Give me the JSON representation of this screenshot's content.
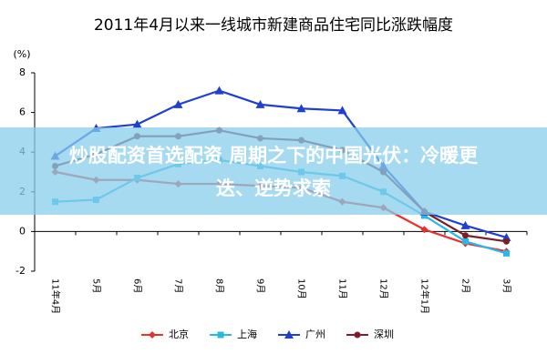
{
  "chart_data": {
    "type": "line",
    "title": "2011年4月以来一线城市新建商品住宅同比涨跌幅度",
    "y_label": "(%)",
    "categories": [
      "11年4月",
      "5月",
      "6月",
      "7月",
      "8月",
      "9月",
      "10月",
      "11月",
      "12月",
      "12年1月",
      "2月",
      "3月"
    ],
    "series": [
      {
        "name": "北京",
        "color": "#e8312a",
        "marker": "diamond",
        "values": [
          3.0,
          2.6,
          2.6,
          2.4,
          2.4,
          2.3,
          2.2,
          1.5,
          1.2,
          0.1,
          -0.6,
          -1.0
        ]
      },
      {
        "name": "上海",
        "color": "#27b8e8",
        "marker": "square",
        "values": [
          1.5,
          1.6,
          2.7,
          3.4,
          3.6,
          3.3,
          3.0,
          2.8,
          2.0,
          0.8,
          -0.5,
          -1.1
        ]
      },
      {
        "name": "广州",
        "color": "#1f3fd0",
        "marker": "triangle",
        "values": [
          3.8,
          5.2,
          5.4,
          6.4,
          7.1,
          6.4,
          6.2,
          6.1,
          3.3,
          1.0,
          0.3,
          -0.3
        ]
      },
      {
        "name": "深圳",
        "color": "#7a1f2a",
        "marker": "circle",
        "values": [
          3.3,
          3.9,
          4.8,
          4.8,
          5.1,
          4.7,
          4.6,
          4.1,
          3.0,
          1.0,
          -0.2,
          -0.5
        ]
      }
    ],
    "ylim": [
      -2,
      8
    ],
    "yticks": [
      -2,
      0,
      2,
      4,
      6,
      8
    ],
    "grid": false
  },
  "overlay": {
    "lines": [
      "炒股配资首选配资 周期之下的中国光伏：冷暖更",
      "迭、逆势求索"
    ]
  }
}
